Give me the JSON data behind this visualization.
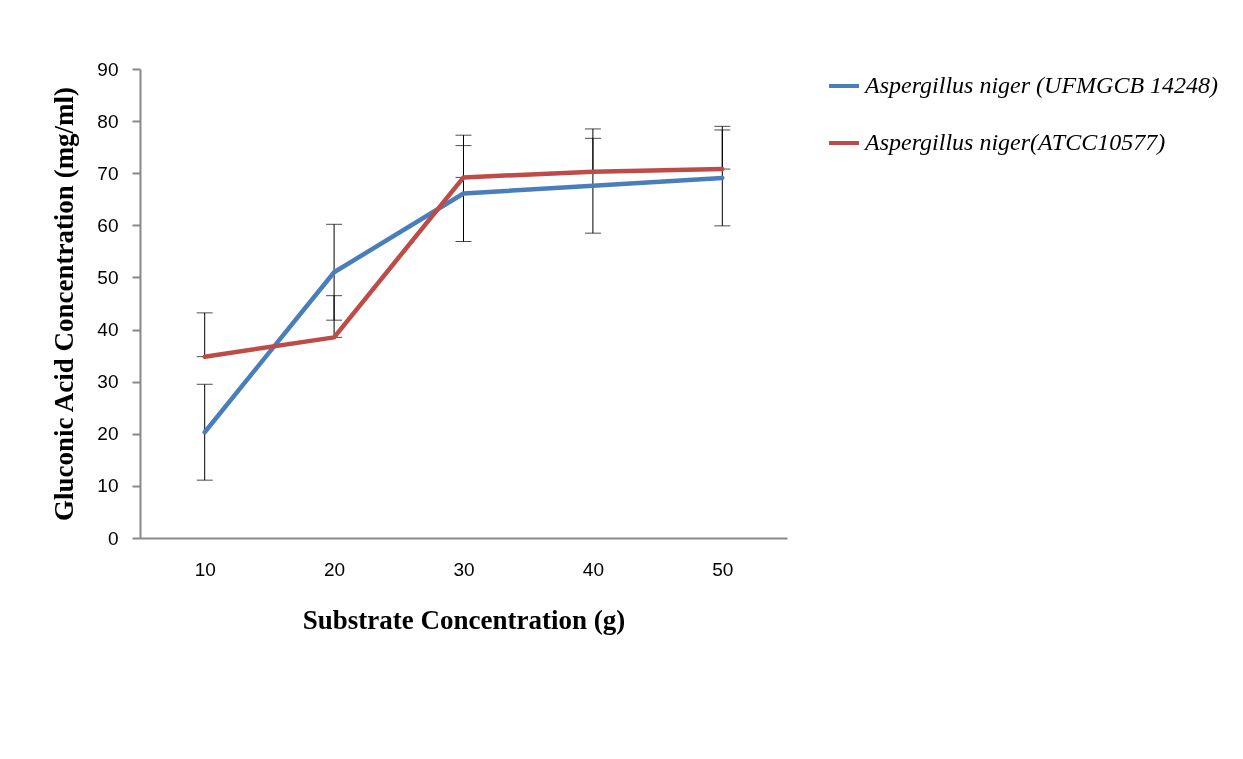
{
  "chart_data": {
    "type": "line",
    "xlabel": "Substrate Concentration (g)",
    "ylabel": "Gluconic Acid Concentration (mg/ml)",
    "categories": [
      "10",
      "20",
      "30",
      "40",
      "50"
    ],
    "ylim": [
      0,
      90
    ],
    "yticks": [
      0,
      10,
      20,
      30,
      40,
      50,
      60,
      70,
      80,
      90
    ],
    "legend": "right",
    "series": [
      {
        "name": "Aspergillus niger (UFMGCB 14248)",
        "color": "#4a7ebb",
        "values": [
          20.3,
          51,
          66.1,
          67.6,
          69.1
        ],
        "errors": [
          9.2,
          9.2,
          9.2,
          9.1,
          9.2
        ]
      },
      {
        "name": "Aspergillus niger(ATCC10577)",
        "color": "#be4b48",
        "values": [
          34.8,
          38.5,
          69.2,
          70.3,
          70.8
        ],
        "errors": [
          [
            34.8,
            43.2
          ],
          [
            38.5,
            46.5
          ],
          [
            69.2,
            77.3
          ],
          [
            70.3,
            78.5
          ],
          [
            70.8,
            79
          ]
        ]
      }
    ]
  }
}
